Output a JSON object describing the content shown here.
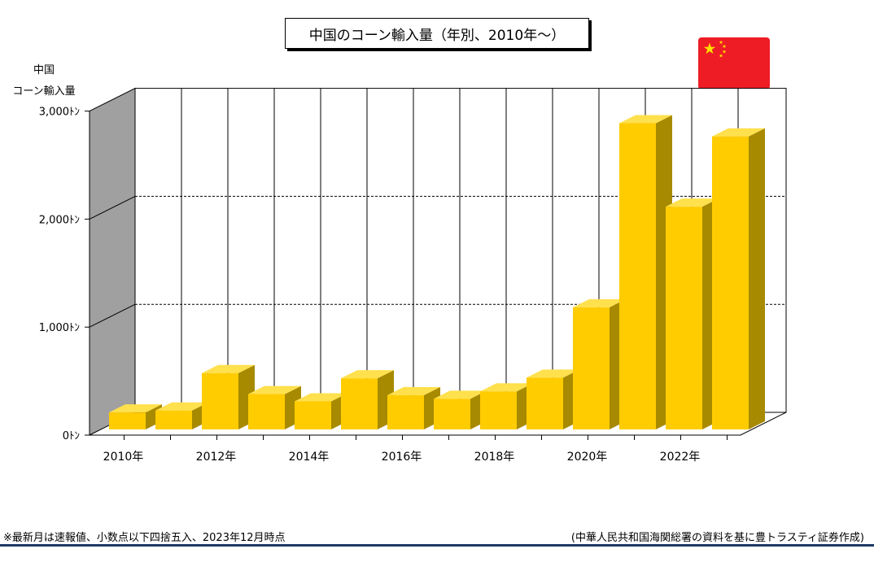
{
  "title": "中国のコーン輸入量（年別、2010年～）",
  "ylabel_lines": [
    "中国",
    "コーン輸入量"
  ],
  "footnote_left": "※最新月は速報値、小数点以下四捨五入、2023年12月時点",
  "footnote_right": "(中華人民共和国海関総署の資料を基に豊トラスティ証券作成)",
  "colors": {
    "bar_front": "#ffcc00",
    "bar_side": "#a88a00",
    "bar_top": "#ffe04d",
    "wall_side": "#a0a0a0",
    "flag_red": "#ee1c25",
    "flag_star": "#ffde00",
    "rule": "#1f3864"
  },
  "chart_data": {
    "type": "bar",
    "categories": [
      "2010",
      "2011",
      "2012",
      "2013",
      "2014",
      "2015",
      "2016",
      "2017",
      "2018",
      "2019",
      "2020",
      "2021",
      "2022",
      "2023"
    ],
    "x_tick_labels": [
      "2010年",
      "2012年",
      "2014年",
      "2016年",
      "2018年",
      "2020年",
      "2022年"
    ],
    "x_tick_label_indices": [
      0,
      2,
      4,
      6,
      8,
      10,
      12
    ],
    "values": [
      157,
      175,
      521,
      327,
      260,
      473,
      317,
      283,
      352,
      479,
      1130,
      2835,
      2062,
      2713
    ],
    "y_tick_labels": [
      "0ﾄﾝ",
      "1,000ﾄﾝ",
      "2,000ﾄﾝ",
      "3,000ﾄﾝ"
    ],
    "y_tick_values": [
      0,
      1000,
      2000,
      3000
    ],
    "ylim": [
      0,
      3000
    ],
    "grid": "horizontal-dashed",
    "legend": "none"
  }
}
